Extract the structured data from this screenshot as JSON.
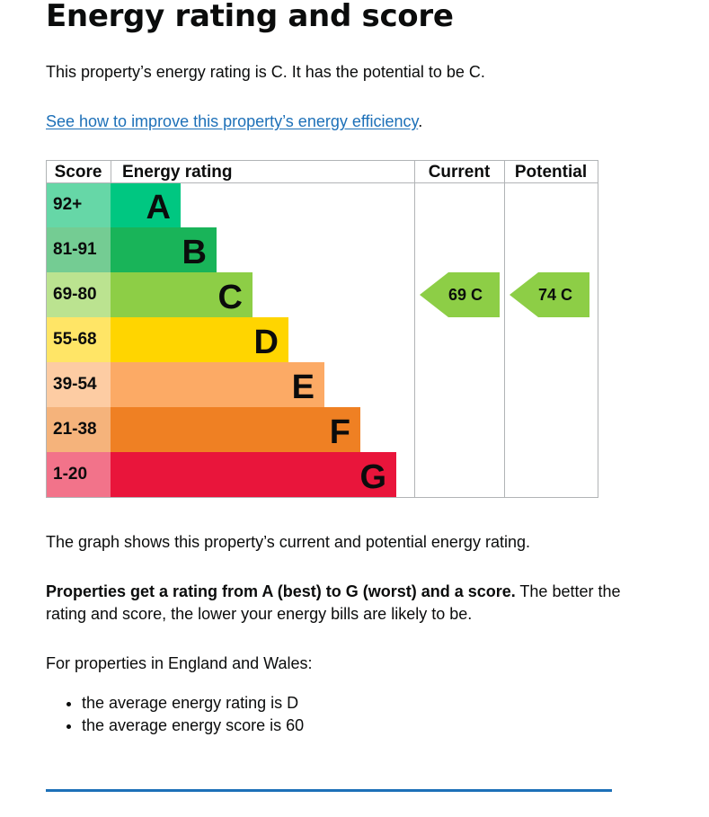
{
  "page": {
    "title": "Energy rating and score",
    "intro": "This property’s energy rating is C. It has the potential to be C.",
    "link_text": "See how to improve this property’s energy efficiency",
    "link_suffix": ".",
    "graph_note": "The graph shows this property’s current and potential energy rating.",
    "scale_bold": "Properties get a rating from A (best) to G (worst) and a score.",
    "scale_rest": " The better the rating and score, the lower your energy bills are likely to be.",
    "avg_heading": "For properties in England and Wales:",
    "avg_items": [
      "the average energy rating is D",
      "the average energy score is 60"
    ]
  },
  "chart_data": {
    "type": "bar",
    "columns": [
      "Score",
      "Energy rating",
      "Current",
      "Potential"
    ],
    "bands": [
      {
        "letter": "A",
        "range": "92+",
        "bar_color": "#00c781",
        "score_bg": "#66d7a7"
      },
      {
        "letter": "B",
        "range": "81-91",
        "bar_color": "#19b459",
        "score_bg": "#74cc93"
      },
      {
        "letter": "C",
        "range": "69-80",
        "bar_color": "#8dce46",
        "score_bg": "#bbe390"
      },
      {
        "letter": "D",
        "range": "55-68",
        "bar_color": "#ffd500",
        "score_bg": "#ffe566"
      },
      {
        "letter": "E",
        "range": "39-54",
        "bar_color": "#fcaa65",
        "score_bg": "#fdcca3"
      },
      {
        "letter": "F",
        "range": "21-38",
        "bar_color": "#ef8023",
        "score_bg": "#f5b37b"
      },
      {
        "letter": "G",
        "range": "1-20",
        "bar_color": "#e9153b",
        "score_bg": "#f2738a"
      }
    ],
    "current": {
      "score": 69,
      "letter": "C",
      "label": "69 C",
      "color": "#8dce46"
    },
    "potential": {
      "score": 74,
      "letter": "C",
      "label": "74 C",
      "color": "#8dce46"
    }
  }
}
